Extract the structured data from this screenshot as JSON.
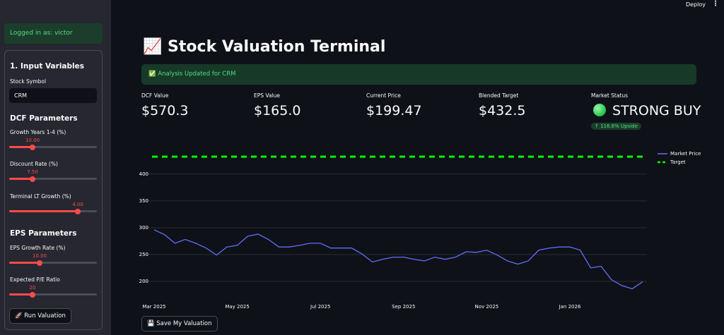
{
  "header": {
    "deploy": "Deploy"
  },
  "sidebar": {
    "login": "Logged in as: victor",
    "section": "1. Input Variables",
    "symbol_label": "Stock Symbol",
    "symbol": "CRM",
    "dcf_title": "DCF Parameters",
    "dcf_sliders": [
      {
        "label": "Growth Years 1-4 (%)",
        "value": "10.00"
      },
      {
        "label": "Discount Rate (%)",
        "value": "7.50"
      },
      {
        "label": "Terminal LT Growth (%)",
        "value": "4.00"
      }
    ],
    "eps_title": "EPS Parameters",
    "eps_sliders": [
      {
        "label": "EPS Growth Rate (%)",
        "value": "10.00"
      },
      {
        "label": "Expected P/E Ratio",
        "value": "20"
      }
    ],
    "run_button": "🚀 Run Valuation"
  },
  "main": {
    "title": "📈 Stock Valuation Terminal",
    "status": "✅ Analysis Updated for CRM",
    "metrics": [
      {
        "label": "DCF Value",
        "value": "$570.3"
      },
      {
        "label": "EPS Value",
        "value": "$165.0"
      },
      {
        "label": "Current Price",
        "value": "$199.47"
      },
      {
        "label": "Blended Target",
        "value": "$432.5"
      }
    ],
    "market_status": {
      "label": "Market Status",
      "value": "STRONG BUY",
      "delta": "↑ 116.8% Upside"
    },
    "save_button": "💾 Save My Valuation"
  },
  "chart_data": {
    "type": "line",
    "categories": [
      "Mar 2025",
      null,
      null,
      null,
      null,
      null,
      null,
      null,
      "May 2025",
      null,
      null,
      null,
      null,
      null,
      null,
      null,
      "Jul 2025",
      null,
      null,
      null,
      null,
      null,
      null,
      null,
      "Sep 2025",
      null,
      null,
      null,
      null,
      null,
      null,
      null,
      "Nov 2025",
      null,
      null,
      null,
      null,
      null,
      null,
      null,
      "Jan 2026",
      null,
      null,
      null,
      null,
      null,
      null,
      null
    ],
    "series": [
      {
        "name": "Market Price",
        "color": "#636efa",
        "values": [
          296,
          287,
          271,
          278,
          271,
          262,
          249,
          264,
          267,
          284,
          288,
          278,
          264,
          264,
          267,
          271,
          271,
          262,
          262,
          262,
          251,
          236,
          241,
          245,
          245,
          241,
          238,
          245,
          241,
          245,
          255,
          254,
          258,
          249,
          238,
          232,
          238,
          258,
          262,
          264,
          264,
          258,
          225,
          228,
          203,
          192,
          186,
          199
        ]
      }
    ],
    "hlines": [
      {
        "name": "Target",
        "color": "#00ff00",
        "value": 432.5
      }
    ],
    "ylim": [
      159,
      455
    ],
    "yticks": [
      200,
      250,
      300,
      350,
      400
    ],
    "grid": true,
    "legend": "top-right"
  }
}
